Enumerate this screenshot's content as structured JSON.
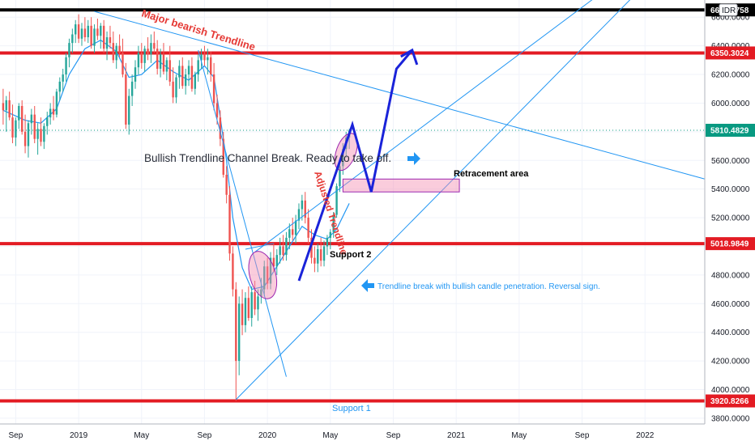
{
  "chart_data": {
    "type": "candlestick",
    "symbol_tag": "IDR",
    "x_ticks": [
      "Sep",
      "2019",
      "May",
      "Sep",
      "2020",
      "May",
      "Sep",
      "2021",
      "May",
      "Sep",
      "2022"
    ],
    "y_ticks": [
      "3800.0000",
      "4000.0000",
      "4200.0000",
      "4400.0000",
      "4600.0000",
      "4800.0000",
      "5000.0000",
      "5200.0000",
      "5400.0000",
      "5600.0000",
      "5800.0000",
      "6000.0000",
      "6200.0000",
      "6400.0000",
      "6600.0000"
    ],
    "ylim": [
      3760,
      6720
    ],
    "x_tick_months": [
      0,
      4,
      8,
      12,
      16,
      20,
      24,
      28,
      32,
      36,
      40
    ],
    "xlim_months": [
      -1,
      43.8
    ],
    "price_tags": [
      {
        "label": "6650.6758",
        "value": 6650.6758,
        "color": "#000000"
      },
      {
        "label": "6350.3024",
        "value": 6350.3024,
        "color": "#e31b23"
      },
      {
        "label": "5810.4829",
        "value": 5810.4829,
        "color": "#089981"
      },
      {
        "label": "5018.9849",
        "value": 5018.9849,
        "color": "#e31b23"
      },
      {
        "label": "3920.8266",
        "value": 3920.8266,
        "color": "#e31b23"
      }
    ],
    "horizontal_levels": [
      {
        "value": 6650.6758,
        "color": "#000000"
      },
      {
        "value": 6350.3024,
        "color": "#e31b23"
      },
      {
        "value": 5018.9849,
        "color": "#e31b23"
      },
      {
        "value": 3920.8266,
        "color": "#e31b23"
      }
    ],
    "candles": [
      {
        "m": -0.8,
        "o": 6000,
        "h": 6100,
        "l": 5850,
        "c": 5950
      },
      {
        "m": -0.6,
        "o": 5950,
        "h": 6050,
        "l": 5800,
        "c": 6020
      },
      {
        "m": -0.4,
        "o": 6020,
        "h": 6080,
        "l": 5880,
        "c": 5900
      },
      {
        "m": -0.2,
        "o": 5900,
        "h": 5990,
        "l": 5720,
        "c": 5760
      },
      {
        "m": 0.0,
        "o": 5760,
        "h": 5900,
        "l": 5700,
        "c": 5880
      },
      {
        "m": 0.2,
        "o": 5880,
        "h": 6000,
        "l": 5820,
        "c": 5980
      },
      {
        "m": 0.4,
        "o": 5980,
        "h": 6020,
        "l": 5780,
        "c": 5800
      },
      {
        "m": 0.6,
        "o": 5800,
        "h": 5920,
        "l": 5650,
        "c": 5700
      },
      {
        "m": 0.8,
        "o": 5700,
        "h": 5880,
        "l": 5620,
        "c": 5860
      },
      {
        "m": 1.0,
        "o": 5860,
        "h": 5960,
        "l": 5780,
        "c": 5920
      },
      {
        "m": 1.2,
        "o": 5920,
        "h": 5980,
        "l": 5720,
        "c": 5750
      },
      {
        "m": 1.4,
        "o": 5750,
        "h": 5860,
        "l": 5640,
        "c": 5820
      },
      {
        "m": 1.6,
        "o": 5820,
        "h": 5900,
        "l": 5700,
        "c": 5730
      },
      {
        "m": 1.8,
        "o": 5730,
        "h": 5860,
        "l": 5680,
        "c": 5840
      },
      {
        "m": 2.0,
        "o": 5840,
        "h": 5940,
        "l": 5780,
        "c": 5900
      },
      {
        "m": 2.2,
        "o": 5900,
        "h": 6000,
        "l": 5850,
        "c": 5960
      },
      {
        "m": 2.4,
        "o": 5960,
        "h": 6050,
        "l": 5880,
        "c": 5920
      },
      {
        "m": 2.6,
        "o": 5920,
        "h": 6100,
        "l": 5900,
        "c": 6080
      },
      {
        "m": 2.8,
        "o": 6080,
        "h": 6180,
        "l": 6020,
        "c": 6150
      },
      {
        "m": 3.0,
        "o": 6150,
        "h": 6240,
        "l": 6080,
        "c": 6200
      },
      {
        "m": 3.2,
        "o": 6200,
        "h": 6350,
        "l": 6150,
        "c": 6320
      },
      {
        "m": 3.4,
        "o": 6320,
        "h": 6450,
        "l": 6250,
        "c": 6420
      },
      {
        "m": 3.6,
        "o": 6420,
        "h": 6520,
        "l": 6350,
        "c": 6480
      },
      {
        "m": 3.8,
        "o": 6480,
        "h": 6580,
        "l": 6420,
        "c": 6550
      },
      {
        "m": 4.0,
        "o": 6550,
        "h": 6620,
        "l": 6420,
        "c": 6450
      },
      {
        "m": 4.2,
        "o": 6450,
        "h": 6560,
        "l": 6400,
        "c": 6520
      },
      {
        "m": 4.4,
        "o": 6520,
        "h": 6600,
        "l": 6430,
        "c": 6460
      },
      {
        "m": 4.6,
        "o": 6460,
        "h": 6580,
        "l": 6420,
        "c": 6540
      },
      {
        "m": 4.8,
        "o": 6540,
        "h": 6600,
        "l": 6380,
        "c": 6400
      },
      {
        "m": 5.0,
        "o": 6400,
        "h": 6550,
        "l": 6350,
        "c": 6520
      },
      {
        "m": 5.2,
        "o": 6520,
        "h": 6590,
        "l": 6440,
        "c": 6470
      },
      {
        "m": 5.4,
        "o": 6470,
        "h": 6560,
        "l": 6380,
        "c": 6540
      },
      {
        "m": 5.6,
        "o": 6540,
        "h": 6580,
        "l": 6350,
        "c": 6380
      },
      {
        "m": 5.8,
        "o": 6380,
        "h": 6500,
        "l": 6300,
        "c": 6460
      },
      {
        "m": 6.0,
        "o": 6460,
        "h": 6540,
        "l": 6380,
        "c": 6420
      },
      {
        "m": 6.2,
        "o": 6420,
        "h": 6500,
        "l": 6280,
        "c": 6300
      },
      {
        "m": 6.4,
        "o": 6300,
        "h": 6420,
        "l": 6240,
        "c": 6400
      },
      {
        "m": 6.6,
        "o": 6400,
        "h": 6480,
        "l": 6320,
        "c": 6350
      },
      {
        "m": 6.8,
        "o": 6350,
        "h": 6450,
        "l": 6180,
        "c": 6200
      },
      {
        "m": 7.0,
        "o": 6200,
        "h": 6280,
        "l": 5820,
        "c": 5850
      },
      {
        "m": 7.2,
        "o": 5850,
        "h": 6100,
        "l": 5780,
        "c": 6050
      },
      {
        "m": 7.4,
        "o": 6050,
        "h": 6200,
        "l": 5980,
        "c": 6150
      },
      {
        "m": 7.6,
        "o": 6150,
        "h": 6300,
        "l": 6100,
        "c": 6250
      },
      {
        "m": 7.8,
        "o": 6250,
        "h": 6400,
        "l": 6200,
        "c": 6350
      },
      {
        "m": 8.0,
        "o": 6350,
        "h": 6420,
        "l": 6240,
        "c": 6280
      },
      {
        "m": 8.2,
        "o": 6280,
        "h": 6400,
        "l": 6220,
        "c": 6380
      },
      {
        "m": 8.4,
        "o": 6380,
        "h": 6460,
        "l": 6300,
        "c": 6340
      },
      {
        "m": 8.6,
        "o": 6340,
        "h": 6480,
        "l": 6280,
        "c": 6420
      },
      {
        "m": 8.8,
        "o": 6420,
        "h": 6500,
        "l": 6350,
        "c": 6380
      },
      {
        "m": 9.0,
        "o": 6380,
        "h": 6440,
        "l": 6200,
        "c": 6240
      },
      {
        "m": 9.2,
        "o": 6240,
        "h": 6380,
        "l": 6180,
        "c": 6340
      },
      {
        "m": 9.4,
        "o": 6340,
        "h": 6420,
        "l": 6200,
        "c": 6220
      },
      {
        "m": 9.6,
        "o": 6220,
        "h": 6320,
        "l": 6160,
        "c": 6300
      },
      {
        "m": 9.8,
        "o": 6300,
        "h": 6400,
        "l": 6120,
        "c": 6150
      },
      {
        "m": 10.0,
        "o": 6150,
        "h": 6250,
        "l": 6000,
        "c": 6040
      },
      {
        "m": 10.2,
        "o": 6040,
        "h": 6200,
        "l": 6000,
        "c": 6180
      },
      {
        "m": 10.4,
        "o": 6180,
        "h": 6300,
        "l": 6100,
        "c": 6260
      },
      {
        "m": 10.6,
        "o": 6260,
        "h": 6320,
        "l": 6100,
        "c": 6120
      },
      {
        "m": 10.8,
        "o": 6120,
        "h": 6240,
        "l": 6060,
        "c": 6200
      },
      {
        "m": 11.0,
        "o": 6200,
        "h": 6300,
        "l": 6120,
        "c": 6260
      },
      {
        "m": 11.2,
        "o": 6260,
        "h": 6320,
        "l": 6080,
        "c": 6100
      },
      {
        "m": 11.4,
        "o": 6100,
        "h": 6220,
        "l": 6060,
        "c": 6200
      },
      {
        "m": 11.6,
        "o": 6200,
        "h": 6340,
        "l": 6150,
        "c": 6300
      },
      {
        "m": 11.8,
        "o": 6300,
        "h": 6380,
        "l": 6240,
        "c": 6340
      },
      {
        "m": 12.0,
        "o": 6340,
        "h": 6400,
        "l": 6260,
        "c": 6300
      },
      {
        "m": 12.2,
        "o": 6300,
        "h": 6380,
        "l": 6200,
        "c": 6320
      },
      {
        "m": 12.4,
        "o": 6320,
        "h": 6360,
        "l": 6150,
        "c": 6200
      },
      {
        "m": 12.6,
        "o": 6200,
        "h": 6280,
        "l": 5950,
        "c": 6000
      },
      {
        "m": 12.8,
        "o": 6000,
        "h": 6060,
        "l": 5850,
        "c": 5900
      },
      {
        "m": 13.0,
        "o": 5900,
        "h": 5950,
        "l": 5700,
        "c": 5750
      },
      {
        "m": 13.2,
        "o": 5750,
        "h": 5800,
        "l": 5480,
        "c": 5500
      },
      {
        "m": 13.4,
        "o": 5500,
        "h": 5560,
        "l": 5300,
        "c": 5360
      },
      {
        "m": 13.6,
        "o": 5360,
        "h": 5420,
        "l": 4900,
        "c": 4950
      },
      {
        "m": 13.8,
        "o": 4950,
        "h": 5000,
        "l": 4650,
        "c": 4700
      },
      {
        "m": 14.0,
        "o": 4700,
        "h": 4750,
        "l": 3920,
        "c": 4200
      },
      {
        "m": 14.2,
        "o": 4200,
        "h": 4650,
        "l": 4100,
        "c": 4600
      },
      {
        "m": 14.4,
        "o": 4600,
        "h": 4700,
        "l": 4380,
        "c": 4450
      },
      {
        "m": 14.6,
        "o": 4450,
        "h": 4680,
        "l": 4400,
        "c": 4640
      },
      {
        "m": 14.8,
        "o": 4640,
        "h": 4720,
        "l": 4480,
        "c": 4500
      },
      {
        "m": 15.0,
        "o": 4500,
        "h": 4720,
        "l": 4440,
        "c": 4680
      },
      {
        "m": 15.2,
        "o": 4680,
        "h": 4760,
        "l": 4520,
        "c": 4560
      },
      {
        "m": 15.4,
        "o": 4560,
        "h": 4700,
        "l": 4480,
        "c": 4650
      },
      {
        "m": 15.6,
        "o": 4650,
        "h": 4780,
        "l": 4600,
        "c": 4700
      },
      {
        "m": 15.8,
        "o": 4700,
        "h": 4900,
        "l": 4650,
        "c": 4860
      },
      {
        "m": 16.0,
        "o": 4860,
        "h": 4920,
        "l": 4700,
        "c": 4740
      },
      {
        "m": 16.2,
        "o": 4740,
        "h": 4960,
        "l": 4700,
        "c": 4920
      },
      {
        "m": 16.4,
        "o": 4920,
        "h": 5020,
        "l": 4820,
        "c": 4860
      },
      {
        "m": 16.6,
        "o": 4860,
        "h": 4980,
        "l": 4800,
        "c": 4940
      },
      {
        "m": 16.8,
        "o": 4940,
        "h": 5060,
        "l": 4880,
        "c": 5000
      },
      {
        "m": 17.0,
        "o": 5000,
        "h": 5080,
        "l": 4900,
        "c": 4940
      },
      {
        "m": 17.2,
        "o": 4940,
        "h": 5100,
        "l": 4900,
        "c": 5060
      },
      {
        "m": 17.4,
        "o": 5060,
        "h": 5160,
        "l": 4980,
        "c": 5120
      },
      {
        "m": 17.6,
        "o": 5120,
        "h": 5200,
        "l": 5040,
        "c": 5080
      },
      {
        "m": 17.8,
        "o": 5080,
        "h": 5220,
        "l": 5020,
        "c": 5180
      },
      {
        "m": 18.0,
        "o": 5180,
        "h": 5300,
        "l": 5120,
        "c": 5260
      },
      {
        "m": 18.2,
        "o": 5260,
        "h": 5360,
        "l": 5180,
        "c": 5320
      },
      {
        "m": 18.4,
        "o": 5320,
        "h": 5380,
        "l": 5160,
        "c": 5200
      },
      {
        "m": 18.6,
        "o": 5200,
        "h": 5260,
        "l": 5020,
        "c": 5060
      },
      {
        "m": 18.8,
        "o": 5060,
        "h": 5120,
        "l": 4880,
        "c": 4920
      },
      {
        "m": 19.0,
        "o": 4920,
        "h": 5000,
        "l": 4820,
        "c": 4880
      },
      {
        "m": 19.2,
        "o": 4880,
        "h": 5020,
        "l": 4820,
        "c": 4980
      },
      {
        "m": 19.4,
        "o": 4980,
        "h": 5060,
        "l": 4860,
        "c": 4900
      },
      {
        "m": 19.6,
        "o": 4900,
        "h": 5040,
        "l": 4860,
        "c": 5000
      },
      {
        "m": 19.8,
        "o": 5000,
        "h": 5080,
        "l": 4940,
        "c": 5060
      },
      {
        "m": 20.0,
        "o": 5060,
        "h": 5120,
        "l": 4980,
        "c": 5100
      },
      {
        "m": 20.2,
        "o": 5100,
        "h": 5240,
        "l": 5060,
        "c": 5220
      },
      {
        "m": 20.4,
        "o": 5220,
        "h": 5440,
        "l": 5200,
        "c": 5420
      },
      {
        "m": 20.6,
        "o": 5420,
        "h": 5600,
        "l": 5380,
        "c": 5560
      },
      {
        "m": 20.8,
        "o": 5560,
        "h": 5720,
        "l": 5500,
        "c": 5680
      },
      {
        "m": 21.0,
        "o": 5680,
        "h": 5800,
        "l": 5620,
        "c": 5760
      },
      {
        "m": 21.2,
        "o": 5760,
        "h": 5820,
        "l": 5680,
        "c": 5810
      }
    ],
    "moving_average": [
      {
        "m": -0.8,
        "v": 5950
      },
      {
        "m": 0.6,
        "v": 5880
      },
      {
        "m": 1.6,
        "v": 5860
      },
      {
        "m": 2.6,
        "v": 5960
      },
      {
        "m": 3.4,
        "v": 6200
      },
      {
        "m": 4.4,
        "v": 6380
      },
      {
        "m": 5.4,
        "v": 6440
      },
      {
        "m": 6.4,
        "v": 6360
      },
      {
        "m": 7.2,
        "v": 6180
      },
      {
        "m": 8.0,
        "v": 6200
      },
      {
        "m": 9.0,
        "v": 6300
      },
      {
        "m": 10.0,
        "v": 6220
      },
      {
        "m": 11.0,
        "v": 6160
      },
      {
        "m": 12.0,
        "v": 6260
      },
      {
        "m": 12.6,
        "v": 6180
      },
      {
        "m": 13.0,
        "v": 5900
      },
      {
        "m": 13.4,
        "v": 5600
      },
      {
        "m": 13.8,
        "v": 5200
      },
      {
        "m": 14.4,
        "v": 4850
      },
      {
        "m": 15.0,
        "v": 4700
      },
      {
        "m": 15.8,
        "v": 4720
      },
      {
        "m": 16.6,
        "v": 4860
      },
      {
        "m": 17.4,
        "v": 5000
      },
      {
        "m": 18.2,
        "v": 5140
      },
      {
        "m": 19.0,
        "v": 5080
      },
      {
        "m": 19.8,
        "v": 5050
      },
      {
        "m": 20.4,
        "v": 5120
      },
      {
        "m": 21.2,
        "v": 5300
      }
    ],
    "drawings": {
      "major_bearish_trendline": {
        "start": {
          "m": 5.0,
          "v": 6640
        },
        "end": {
          "m": 43.8,
          "v": 5470
        }
      },
      "adjusted_trendline": {
        "start": {
          "m": 11.6,
          "v": 6370
        },
        "end": {
          "m": 17.2,
          "v": 4090
        }
      },
      "channel_lower_line": {
        "start": {
          "m": 14.0,
          "v": 3930
        },
        "end": {
          "m": 40.2,
          "v": 6850
        }
      },
      "channel_upper_line": {
        "start": {
          "m": 15.2,
          "v": 4960
        },
        "end": {
          "m": 38.2,
          "v": 6850
        }
      },
      "support2_segment": {
        "start": {
          "m": 14.6,
          "v": 4980
        },
        "end": {
          "m": 16.4,
          "v": 5020
        }
      },
      "projection_path": [
        {
          "m": 18.0,
          "v": 4760
        },
        {
          "m": 21.4,
          "v": 5850
        },
        {
          "m": 22.6,
          "v": 5380
        },
        {
          "m": 24.2,
          "v": 6240
        },
        {
          "m": 25.2,
          "v": 6370
        }
      ],
      "retracement_box": {
        "m1": 20.8,
        "m2": 28.2,
        "v1": 5380,
        "v2": 5470
      }
    },
    "annotations": {
      "major_bearish": "Major bearish Trendline",
      "adjusted": "Adjusted Trendline",
      "channel_break": "Bullish Trendline Channel Break. Ready to take off.",
      "retracement": "Retracement area",
      "support2": "Support 2",
      "trendline_break": "Trendline break with bullish candle penetration. Reversal sign.",
      "support1": "Support 1"
    }
  }
}
